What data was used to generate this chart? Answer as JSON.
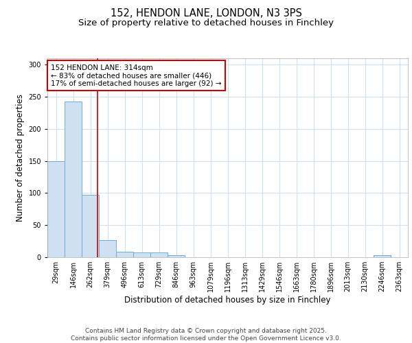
{
  "title1": "152, HENDON LANE, LONDON, N3 3PS",
  "title2": "Size of property relative to detached houses in Finchley",
  "xlabel": "Distribution of detached houses by size in Finchley",
  "ylabel": "Number of detached properties",
  "bin_labels": [
    "29sqm",
    "146sqm",
    "262sqm",
    "379sqm",
    "496sqm",
    "613sqm",
    "729sqm",
    "846sqm",
    "963sqm",
    "1079sqm",
    "1196sqm",
    "1313sqm",
    "1429sqm",
    "1546sqm",
    "1663sqm",
    "1780sqm",
    "1896sqm",
    "2013sqm",
    "2130sqm",
    "2246sqm",
    "2363sqm"
  ],
  "bar_heights": [
    150,
    243,
    97,
    27,
    9,
    7,
    7,
    3,
    0,
    0,
    0,
    0,
    0,
    0,
    0,
    0,
    0,
    0,
    0,
    3,
    0
  ],
  "bar_color": "#cfe0f0",
  "bar_edge_color": "#6aadd5",
  "vline_x": 2.42,
  "vline_color": "#cc0000",
  "annotation_text": "152 HENDON LANE: 314sqm\n← 83% of detached houses are smaller (446)\n17% of semi-detached houses are larger (92) →",
  "annotation_box_color": "#cc0000",
  "ylim": [
    0,
    310
  ],
  "yticks": [
    0,
    50,
    100,
    150,
    200,
    250,
    300
  ],
  "grid_color": "#d0dff0",
  "footer_text": "Contains HM Land Registry data © Crown copyright and database right 2025.\nContains public sector information licensed under the Open Government Licence v3.0.",
  "title_fontsize": 10.5,
  "subtitle_fontsize": 9.5,
  "tick_fontsize": 7,
  "label_fontsize": 8.5,
  "annot_fontsize": 7.5,
  "footer_fontsize": 6.5
}
